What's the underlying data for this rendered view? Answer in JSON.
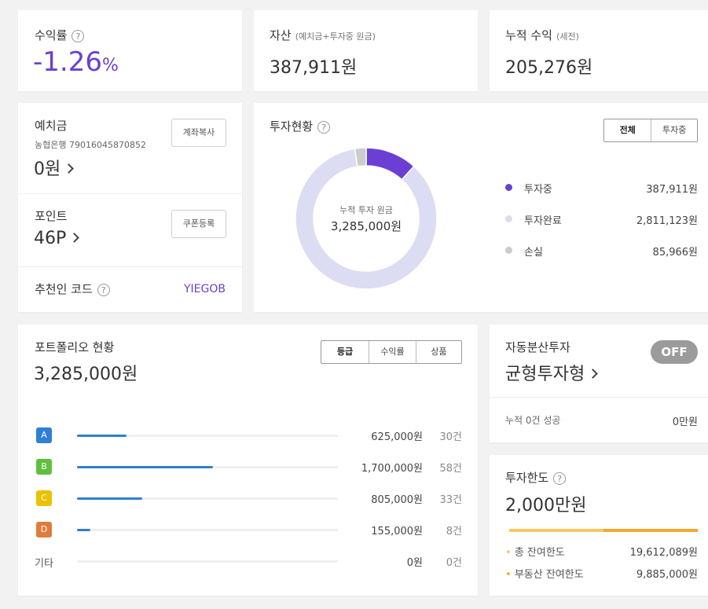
{
  "summary": {
    "return_rate": {
      "label": "수익률",
      "value": "-1.26",
      "unit": "%"
    },
    "assets": {
      "label": "자산",
      "sub": "(예치금+투자중 원금)",
      "value": "387,911원"
    },
    "cumulative": {
      "label": "누적 수익",
      "sub": "(세전)",
      "value": "205,276원"
    }
  },
  "deposit": {
    "label": "예치금",
    "bank": "농협은행 79016045870852",
    "value": "0원",
    "copy_button": "계좌복사"
  },
  "point": {
    "label": "포인트",
    "value": "46P",
    "coupon_button": "쿠폰등록"
  },
  "referral": {
    "label": "추천인 코드",
    "code": "YIEGOB"
  },
  "investment": {
    "title": "투자현황",
    "tabs": [
      "전체",
      "투자중"
    ],
    "center_label": "누적 투자 원금",
    "center_value": "3,285,000원",
    "legend": [
      {
        "label": "투자중",
        "value": "387,911원",
        "color": "#6b3fd4"
      },
      {
        "label": "투자완료",
        "value": "2,811,123원",
        "color": "#dcdcf2"
      },
      {
        "label": "손실",
        "value": "85,966원",
        "color": "#cccccc"
      }
    ],
    "chart_data": {
      "type": "pie",
      "categories": [
        "투자중",
        "투자완료",
        "손실"
      ],
      "values": [
        387911,
        2811123,
        85966
      ],
      "colors": [
        "#6b3fd4",
        "#dcdcf2",
        "#cccccc"
      ]
    }
  },
  "portfolio": {
    "title": "포트폴리오 현황",
    "total": "3,285,000원",
    "tabs": [
      "등급",
      "수익률",
      "상품"
    ],
    "rows": [
      {
        "grade": "A",
        "color": "#2f7fd3",
        "amount": "625,000원",
        "count": "30건",
        "ratio": 0.19
      },
      {
        "grade": "B",
        "color": "#5fbf3e",
        "amount": "1,700,000원",
        "count": "58건",
        "ratio": 0.52
      },
      {
        "grade": "C",
        "color": "#e9c200",
        "amount": "805,000원",
        "count": "33건",
        "ratio": 0.25
      },
      {
        "grade": "D",
        "color": "#e07b3c",
        "amount": "155,000원",
        "count": "8건",
        "ratio": 0.05
      },
      {
        "grade": "기타",
        "color": "",
        "amount": "0원",
        "count": "0건",
        "ratio": 0
      }
    ]
  },
  "auto": {
    "label": "자동분산투자",
    "value": "균형투자형",
    "toggle": "OFF",
    "success_label": "누적 0건 성공",
    "success_value": "0만원"
  },
  "limit": {
    "label": "투자한도",
    "value": "2,000만원",
    "rows": [
      {
        "label": "총 잔여한도",
        "value": "19,612,089원",
        "color": "#f6c860"
      },
      {
        "label": "부동산 잔여한도",
        "value": "9,885,000원",
        "color": "#f0a830"
      }
    ],
    "bar_split": 0.5
  }
}
